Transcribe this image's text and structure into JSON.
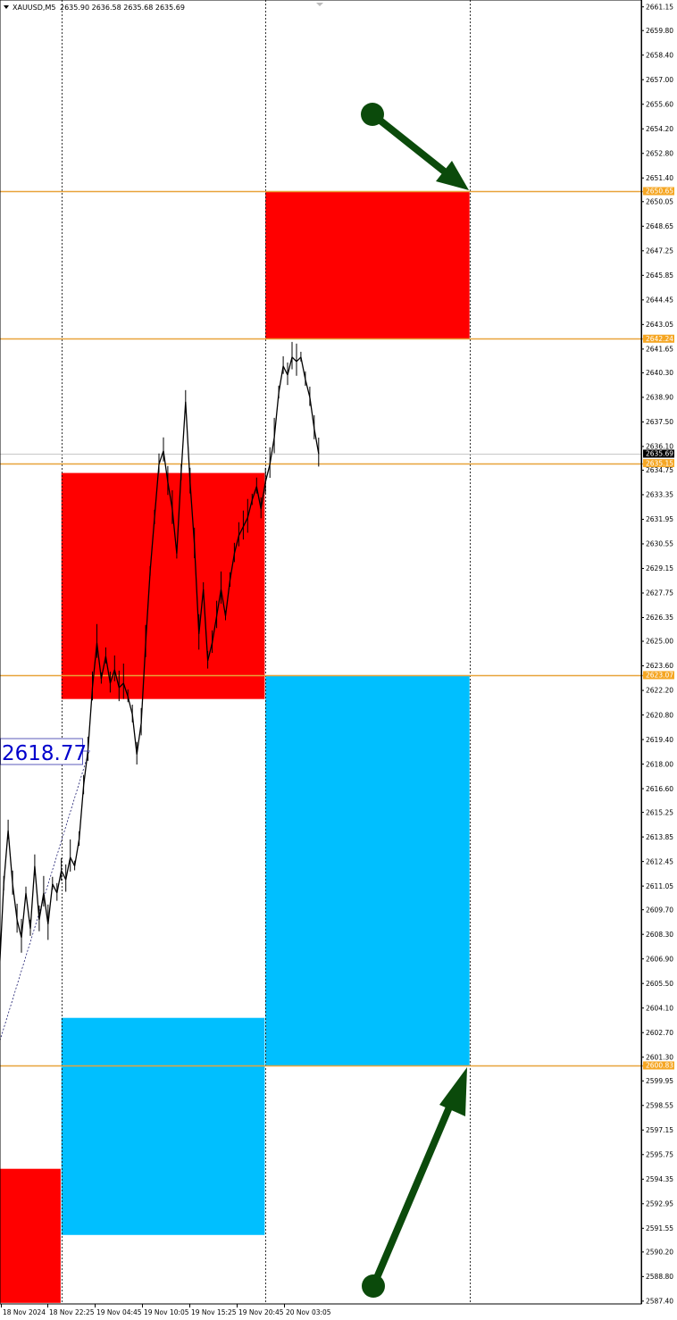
{
  "header": {
    "symbol": "XAUUSD,M5",
    "ohlc": "2635.90 2636.58 2635.68 2635.69"
  },
  "colors": {
    "supply_zone": "#ff0000",
    "demand_zone": "#00bfff",
    "level_line": "#e8a33a",
    "level_label_bg": "#f5a623",
    "current_price_bg": "#000000",
    "price_line": "#000000",
    "arrow": "#0b4a0b",
    "label_text": "#0000cc"
  },
  "annotation_label": "2618.77",
  "chart_data": {
    "type": "line",
    "symbol": "XAUUSD",
    "timeframe": "M5",
    "ylim": [
      2587.3,
      2661.6
    ],
    "grid": false,
    "y_ticks": [
      "2661.15",
      "2659.80",
      "2658.40",
      "2657.00",
      "2655.60",
      "2654.20",
      "2652.80",
      "2651.40",
      "2650.05",
      "2648.65",
      "2647.25",
      "2645.85",
      "2644.45",
      "2643.05",
      "2641.65",
      "2640.30",
      "2638.90",
      "2637.50",
      "2636.10",
      "2634.75",
      "2633.35",
      "2631.95",
      "2630.55",
      "2629.15",
      "2627.75",
      "2626.35",
      "2625.00",
      "2623.60",
      "2622.20",
      "2620.80",
      "2619.40",
      "2618.00",
      "2616.60",
      "2615.25",
      "2613.85",
      "2612.45",
      "2611.05",
      "2609.70",
      "2608.30",
      "2606.90",
      "2605.50",
      "2604.10",
      "2602.70",
      "2601.30",
      "2599.95",
      "2598.55",
      "2597.15",
      "2595.75",
      "2594.35",
      "2592.95",
      "2591.55",
      "2590.20",
      "2588.80",
      "2587.40"
    ],
    "x_ticks": [
      {
        "label": "18 Nov 2024",
        "time": "18 Nov 17:05"
      },
      {
        "label": "18 Nov 22:25",
        "time": "18 Nov 22:25"
      },
      {
        "label": "19 Nov 04:45",
        "time": "19 Nov 04:45"
      },
      {
        "label": "19 Nov 10:05",
        "time": "19 Nov 10:05"
      },
      {
        "label": "19 Nov 15:25",
        "time": "19 Nov 15:25"
      },
      {
        "label": "19 Nov 20:45",
        "time": "19 Nov 20:45"
      },
      {
        "label": "20 Nov 03:05",
        "time": "20 Nov 03:05"
      }
    ],
    "day_separators": [
      "19 Nov 00:00",
      "20 Nov 00:00",
      "21 Nov 00:00"
    ],
    "levels": [
      {
        "price": 2650.65,
        "label": "2650.65"
      },
      {
        "price": 2642.24,
        "label": "2642.24"
      },
      {
        "price": 2635.15,
        "label": "2635.15"
      },
      {
        "price": 2623.07,
        "label": "2623.07"
      },
      {
        "price": 2600.83,
        "label": "2600.83"
      }
    ],
    "current_price": {
      "price": 2635.69,
      "label": "2635.69"
    },
    "zones": [
      {
        "kind": "supply",
        "from": "18 Nov 17:05",
        "to": "18 Nov 23:55",
        "top": 2594.94,
        "bottom": 2587.3
      },
      {
        "kind": "supply",
        "from": "19 Nov 00:00",
        "to": "19 Nov 23:55",
        "top": 2634.59,
        "bottom": 2621.71
      },
      {
        "kind": "demand",
        "from": "19 Nov 00:00",
        "to": "19 Nov 23:55",
        "top": 2603.54,
        "bottom": 2591.17
      },
      {
        "kind": "supply",
        "from": "20 Nov 00:00",
        "to": "21 Nov 00:00",
        "top": 2650.65,
        "bottom": 2642.24
      },
      {
        "kind": "demand",
        "from": "20 Nov 00:00",
        "to": "21 Nov 00:00",
        "top": 2623.07,
        "bottom": 2600.83
      }
    ],
    "series": [
      {
        "x": [
          "18 Nov 17:00",
          "18 Nov 17:30",
          "18 Nov 18:00",
          "18 Nov 18:30",
          "18 Nov 19:00",
          "18 Nov 19:30",
          "18 Nov 20:00",
          "18 Nov 20:30",
          "18 Nov 21:00",
          "18 Nov 21:30",
          "18 Nov 22:00",
          "18 Nov 22:30",
          "18 Nov 23:00",
          "18 Nov 23:30",
          "19 Nov 01:00",
          "19 Nov 01:30",
          "19 Nov 02:00",
          "19 Nov 02:30",
          "19 Nov 03:00",
          "19 Nov 03:30",
          "19 Nov 04:00",
          "19 Nov 04:30",
          "19 Nov 05:00",
          "19 Nov 05:30",
          "19 Nov 06:00",
          "19 Nov 06:30",
          "19 Nov 07:00",
          "19 Nov 07:30",
          "19 Nov 08:00",
          "19 Nov 08:30",
          "19 Nov 09:00",
          "19 Nov 09:30",
          "19 Nov 10:00",
          "19 Nov 10:30",
          "19 Nov 11:00",
          "19 Nov 11:30",
          "19 Nov 12:00",
          "19 Nov 12:30",
          "19 Nov 13:00",
          "19 Nov 13:30",
          "19 Nov 14:00",
          "19 Nov 14:30",
          "19 Nov 15:00",
          "19 Nov 15:30",
          "19 Nov 16:00",
          "19 Nov 16:30",
          "19 Nov 17:00",
          "19 Nov 17:30",
          "19 Nov 18:00",
          "19 Nov 18:30",
          "19 Nov 19:00",
          "19 Nov 19:30",
          "19 Nov 20:00",
          "19 Nov 20:30",
          "19 Nov 21:00",
          "19 Nov 21:30",
          "19 Nov 22:00",
          "19 Nov 22:30",
          "19 Nov 23:00",
          "19 Nov 23:30",
          "20 Nov 01:00",
          "20 Nov 01:30",
          "20 Nov 02:00",
          "20 Nov 02:30",
          "20 Nov 03:00",
          "20 Nov 03:30",
          "20 Nov 04:00",
          "20 Nov 04:30",
          "20 Nov 05:00",
          "20 Nov 05:30",
          "20 Nov 06:00",
          "20 Nov 06:30",
          "20 Nov 07:00"
        ],
        "close": [
          2606.08,
          2611.17,
          2614.22,
          2611.17,
          2609.13,
          2608.11,
          2610.66,
          2608.62,
          2612.19,
          2609.13,
          2610.66,
          2608.88,
          2611.17,
          2610.66,
          2611.93,
          2611.42,
          2612.69,
          2612.19,
          2613.71,
          2616.77,
          2618.8,
          2622.36,
          2624.91,
          2622.87,
          2624.14,
          2622.61,
          2623.38,
          2622.36,
          2622.61,
          2621.85,
          2620.83,
          2618.55,
          2620.33,
          2624.91,
          2628.98,
          2632.04,
          2635.09,
          2635.85,
          2634.07,
          2632.54,
          2630.0,
          2634.58,
          2638.65,
          2634.07,
          2630.51,
          2625.42,
          2627.96,
          2623.89,
          2624.91,
          2626.44,
          2627.96,
          2626.44,
          2628.47,
          2630.0,
          2631.02,
          2631.53,
          2632.04,
          2633.05,
          2633.82,
          2632.54,
          2634.07,
          2635.09,
          2636.61,
          2639.16,
          2640.68,
          2640.17,
          2641.19,
          2640.94,
          2641.19,
          2639.92,
          2638.9,
          2637.12,
          2635.69
        ]
      }
    ]
  }
}
